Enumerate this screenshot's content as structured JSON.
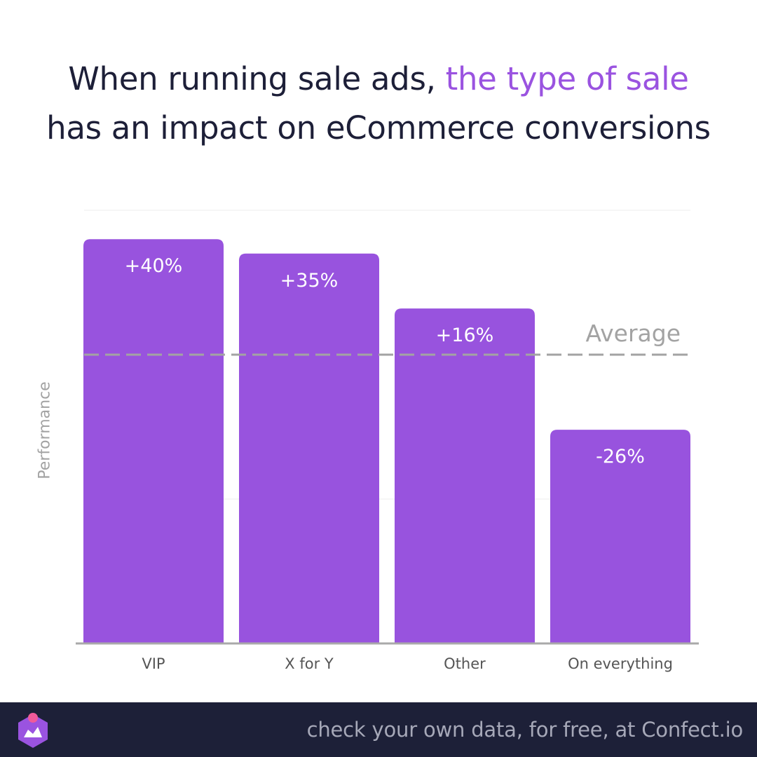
{
  "title": {
    "line1_prefix": "When running sale ads, ",
    "line1_highlight": "the type of sale",
    "line2": "has an impact on eCommerce conversions"
  },
  "colors": {
    "bar": "#9853de",
    "highlight": "#9a53e0",
    "title": "#1d1f38",
    "average_line": "#a3a3a3",
    "axis": "#a9a9a9",
    "footer_bg": "#1d2038",
    "footer_text": "#a6a8b8"
  },
  "chart_data": {
    "type": "bar",
    "categories": [
      "VIP",
      "X for Y",
      "Other",
      "On everything"
    ],
    "values": [
      40,
      35,
      16,
      -26
    ],
    "data_labels": [
      "+40%",
      "+35%",
      "+16%",
      "-26%"
    ],
    "reference_line": {
      "label": "Average",
      "value": 0,
      "style": "dashed"
    },
    "ylabel": "Performance",
    "xlabel": "",
    "ylim": [
      -100,
      50
    ],
    "grid": true,
    "legend": "none"
  },
  "footer": {
    "text": "check your own data, for free, at Confect.io",
    "logo_icon": "confect-logo-icon"
  }
}
